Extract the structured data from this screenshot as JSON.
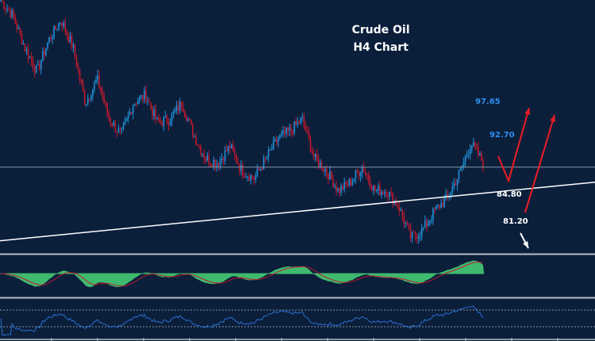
{
  "chart_data": {
    "type": "candlestick",
    "title": "Crude Oil",
    "subtitle": "H4 Chart",
    "ylim": [
      76.5,
      111.8
    ],
    "grid": false,
    "colors": {
      "background": "#0b1f3b",
      "up": "#1f8fd6",
      "down": "#c0182c",
      "trendline": "#ffffff",
      "arrow": "#ee1c25",
      "macd_hist": "#3fb96e",
      "macd_signal": "#c0182c",
      "rsi": "#2a6fd0"
    },
    "approx_closes": [
      111.8,
      109.6,
      105.1,
      101.8,
      106.3,
      109.0,
      105.1,
      97.4,
      100.7,
      95.1,
      92.9,
      97.4,
      98.5,
      94.6,
      95.1,
      97.4,
      92.9,
      89.6,
      89.0,
      91.3,
      87.9,
      86.8,
      89.6,
      92.4,
      93.5,
      95.1,
      89.6,
      87.9,
      85.1,
      86.3,
      88.5,
      85.1,
      85.1,
      82.9,
      78.5,
      79.6,
      82.4,
      84.0,
      87.4,
      91.8,
      89.0
    ],
    "horizontal_level": 88.4,
    "trendline": {
      "start": 78.1,
      "end": 86.3
    },
    "annotations": [
      {
        "text": "97.65",
        "color": "#2f8ff0"
      },
      {
        "text": "92.70",
        "color": "#2f8ff0"
      },
      {
        "text": "84.80",
        "color": "#ffffff"
      },
      {
        "text": "81.20",
        "color": "#ffffff"
      }
    ]
  }
}
